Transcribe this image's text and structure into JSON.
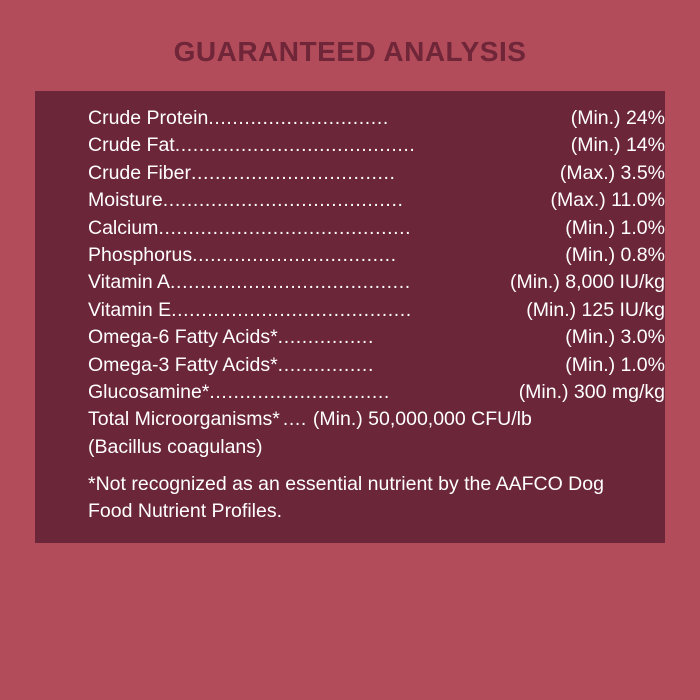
{
  "title": "GUARANTEED ANALYSIS",
  "rows": [
    {
      "name": "Crude Protein",
      "dots": "..............................",
      "value": "(Min.) 24%"
    },
    {
      "name": "Crude Fat",
      "dots": "........................................",
      "value": "(Min.) 14%"
    },
    {
      "name": "Crude Fiber",
      "dots": "..................................",
      "value": "(Max.) 3.5%"
    },
    {
      "name": "Moisture",
      "dots": "........................................",
      "value": "(Max.) 11.0%"
    },
    {
      "name": "Calcium",
      "dots": "..........................................",
      "value": "(Min.) 1.0%"
    },
    {
      "name": "Phosphorus",
      "dots": "..................................",
      "value": "(Min.) 0.8%"
    },
    {
      "name": "Vitamin A",
      "dots": "........................................",
      "value": "(Min.) 8,000 IU/kg"
    },
    {
      "name": "Vitamin E",
      "dots": "........................................",
      "value": "(Min.) 125 IU/kg"
    },
    {
      "name": "Omega-6 Fatty Acids*",
      "dots": "................",
      "value": "(Min.) 3.0%"
    },
    {
      "name": "Omega-3 Fatty Acids*",
      "dots": "................",
      "value": "(Min.) 1.0%"
    },
    {
      "name": "Glucosamine*",
      "dots": "..............................",
      "value": "(Min.) 300 mg/kg"
    },
    {
      "name": "Total Microorganisms*",
      "dots": ".... ",
      "value": "(Min.) 50,000,000 CFU/lb"
    }
  ],
  "bacillus": "(Bacillus coagulans)",
  "note": "*Not recognized as an essential nutrient by the AAFCO Dog Food Nutrient Profiles."
}
